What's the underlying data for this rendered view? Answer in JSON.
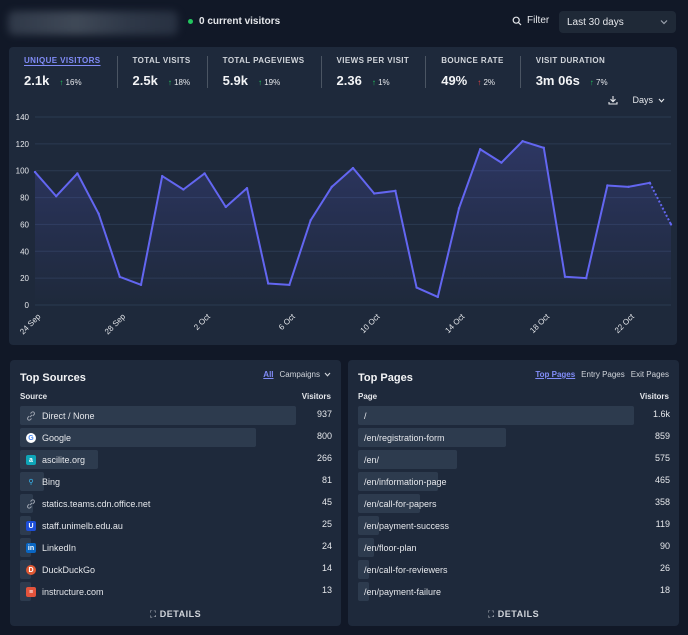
{
  "header": {
    "current_visitors": "0 current visitors",
    "filter_label": "Filter",
    "period_label": "Last 30 days"
  },
  "stats": [
    {
      "label": "UNIQUE VISITORS",
      "value": "2.1k",
      "change": "16%",
      "direction": "up",
      "color": "#22c55e",
      "active": true
    },
    {
      "label": "TOTAL VISITS",
      "value": "2.5k",
      "change": "18%",
      "direction": "up",
      "color": "#22c55e"
    },
    {
      "label": "TOTAL PAGEVIEWS",
      "value": "5.9k",
      "change": "19%",
      "direction": "up",
      "color": "#22c55e"
    },
    {
      "label": "VIEWS PER VISIT",
      "value": "2.36",
      "change": "1%",
      "direction": "up",
      "color": "#22c55e"
    },
    {
      "label": "BOUNCE RATE",
      "value": "49%",
      "change": "2%",
      "direction": "up",
      "color": "#ef4444"
    },
    {
      "label": "VISIT DURATION",
      "value": "3m 06s",
      "change": "7%",
      "direction": "up",
      "color": "#22c55e"
    }
  ],
  "chart_tools": {
    "interval_label": "Days"
  },
  "chart_data": {
    "type": "area",
    "x": [
      "24 Sep",
      "25 Sep",
      "26 Sep",
      "27 Sep",
      "28 Sep",
      "29 Sep",
      "30 Sep",
      "1 Oct",
      "2 Oct",
      "3 Oct",
      "4 Oct",
      "5 Oct",
      "6 Oct",
      "7 Oct",
      "8 Oct",
      "9 Oct",
      "10 Oct",
      "11 Oct",
      "12 Oct",
      "13 Oct",
      "14 Oct",
      "15 Oct",
      "16 Oct",
      "17 Oct",
      "18 Oct",
      "19 Oct",
      "20 Oct",
      "21 Oct",
      "22 Oct",
      "23 Oct",
      "24 Oct"
    ],
    "series": [
      {
        "values": [
          99,
          81,
          98,
          68,
          21,
          15,
          96,
          86,
          98,
          73,
          87,
          16,
          15,
          63,
          88,
          102,
          83,
          85,
          13,
          6,
          72,
          116,
          106,
          122,
          117,
          21,
          20,
          89,
          88,
          91,
          60
        ]
      }
    ],
    "partial_last_point": true,
    "xtick_labels": [
      "24 Sep",
      "28 Sep",
      "2 Oct",
      "6 Oct",
      "10 Oct",
      "14 Oct",
      "18 Oct",
      "22 Oct"
    ],
    "yticks": [
      0,
      20,
      40,
      60,
      80,
      100,
      120,
      140
    ],
    "ylim": [
      0,
      140
    ],
    "line_color": "#6366f1",
    "grid": true
  },
  "sources": {
    "title": "Top Sources",
    "tabs": [
      "All",
      "Campaigns"
    ],
    "col_source": "Source",
    "col_visitors": "Visitors",
    "items": [
      {
        "label": "Direct / None",
        "value": "937",
        "count": 937,
        "icon": "link-icon"
      },
      {
        "label": "Google",
        "value": "800",
        "count": 800,
        "icon": "google-icon"
      },
      {
        "label": "ascilite.org",
        "value": "266",
        "count": 266,
        "icon": "ascilite-icon"
      },
      {
        "label": "Bing",
        "value": "81",
        "count": 81,
        "icon": "bing-icon"
      },
      {
        "label": "statics.teams.cdn.office.net",
        "value": "45",
        "count": 45,
        "icon": "link-icon"
      },
      {
        "label": "staff.unimelb.edu.au",
        "value": "25",
        "count": 25,
        "icon": "unimelb-icon"
      },
      {
        "label": "LinkedIn",
        "value": "24",
        "count": 24,
        "icon": "linkedin-icon"
      },
      {
        "label": "DuckDuckGo",
        "value": "14",
        "count": 14,
        "icon": "duckduckgo-icon"
      },
      {
        "label": "instructure.com",
        "value": "13",
        "count": 13,
        "icon": "instructure-icon"
      }
    ],
    "details_label": "DETAILS"
  },
  "pages": {
    "title": "Top Pages",
    "tabs": [
      "Top Pages",
      "Entry Pages",
      "Exit Pages"
    ],
    "col_page": "Page",
    "col_visitors": "Visitors",
    "items": [
      {
        "label": "/",
        "value": "1.6k",
        "count": 1600
      },
      {
        "label": "/en/registration-form",
        "value": "859",
        "count": 859
      },
      {
        "label": "/en/",
        "value": "575",
        "count": 575
      },
      {
        "label": "/en/information-page",
        "value": "465",
        "count": 465
      },
      {
        "label": "/en/call-for-papers",
        "value": "358",
        "count": 358
      },
      {
        "label": "/en/payment-success",
        "value": "119",
        "count": 119
      },
      {
        "label": "/en/floor-plan",
        "value": "90",
        "count": 90
      },
      {
        "label": "/en/call-for-reviewers",
        "value": "26",
        "count": 26
      },
      {
        "label": "/en/payment-failure",
        "value": "18",
        "count": 18
      }
    ],
    "details_label": "DETAILS"
  }
}
